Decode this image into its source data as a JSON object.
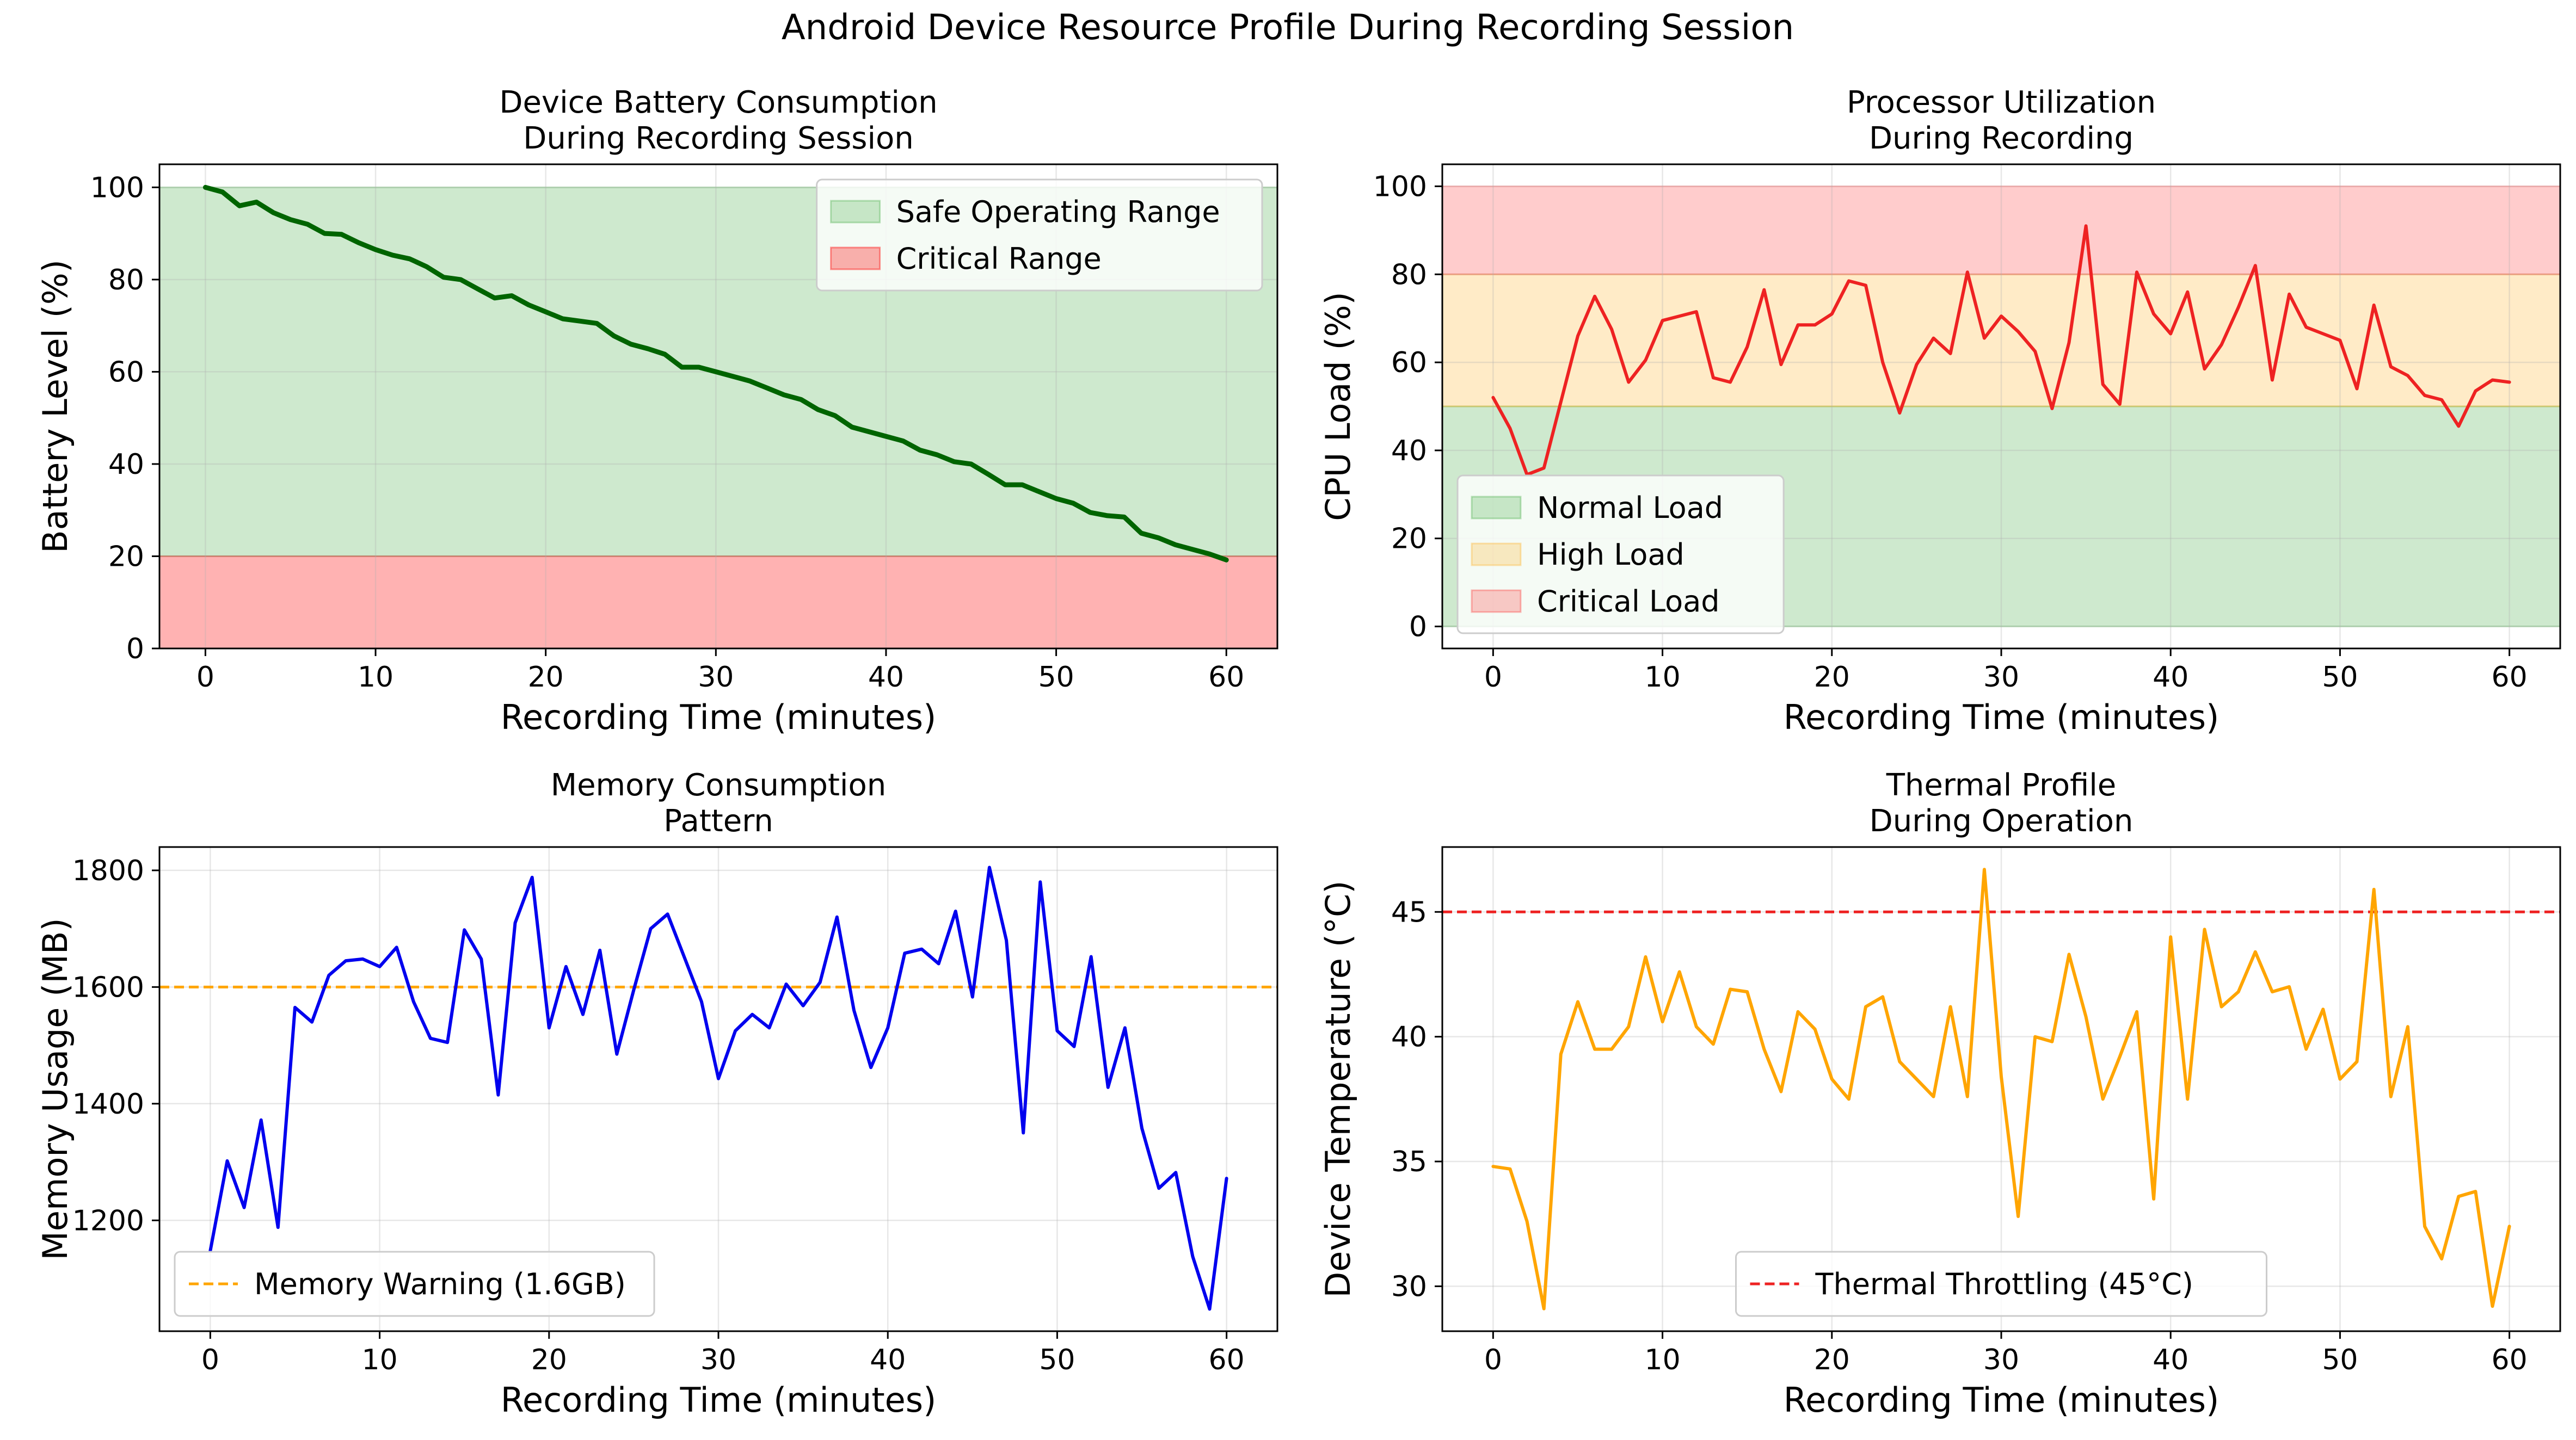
{
  "figure": {
    "suptitle": "Android Device Resource Profile During Recording Session"
  },
  "chart_data": [
    {
      "type": "line",
      "title": "Device Battery Consumption\nDuring Recording Session",
      "xlabel": "Recording Time (minutes)",
      "ylabel": "Battery Level (%)",
      "xlim": [
        -2.7,
        63
      ],
      "ylim": [
        0,
        105
      ],
      "xticks": [
        0,
        10,
        20,
        30,
        40,
        50,
        60
      ],
      "yticks": [
        0,
        20,
        40,
        60,
        80,
        100
      ],
      "grid": true,
      "legend_position": "top-right",
      "bands": [
        {
          "label": "Safe Operating Range",
          "y0": 20,
          "y1": 100,
          "color": "#2ca02c",
          "opacity": 0.23
        },
        {
          "label": "Critical Range",
          "y0": 0,
          "y1": 20,
          "color": "#ff0000",
          "opacity": 0.3
        }
      ],
      "series": [
        {
          "color": "#006400",
          "width": 3,
          "x": [
            0,
            1,
            2,
            3,
            4,
            5,
            6,
            7,
            8,
            9,
            10,
            11,
            12,
            13,
            14,
            15,
            16,
            17,
            18,
            19,
            20,
            21,
            22,
            23,
            24,
            25,
            26,
            27,
            28,
            29,
            30,
            31,
            32,
            33,
            34,
            35,
            36,
            37,
            38,
            39,
            40,
            41,
            42,
            43,
            44,
            45,
            46,
            47,
            48,
            49,
            50,
            51,
            52,
            53,
            54,
            55,
            56,
            57,
            58,
            59,
            60
          ],
          "values": [
            100,
            99,
            96,
            96.8,
            94.5,
            93,
            92,
            90,
            89.8,
            88,
            86.5,
            85.3,
            84.5,
            82.8,
            80.5,
            80,
            78,
            76,
            76.5,
            74.5,
            73,
            71.5,
            71,
            70.5,
            67.8,
            66,
            65,
            63.8,
            61,
            61,
            60,
            59,
            58,
            56.5,
            55,
            54,
            51.8,
            50.5,
            48,
            47,
            46,
            45,
            43,
            42,
            40.5,
            40,
            37.8,
            35.5,
            35.5,
            34,
            32.5,
            31.5,
            29.5,
            28.8,
            28.5,
            25,
            24,
            22.5,
            21.5,
            20.5,
            19.2
          ]
        }
      ]
    },
    {
      "type": "line",
      "title": "Processor Utilization\nDuring Recording",
      "xlabel": "Recording Time (minutes)",
      "ylabel": "CPU Load (%)",
      "xlim": [
        -3,
        63
      ],
      "ylim": [
        -5,
        105
      ],
      "xticks": [
        0,
        10,
        20,
        30,
        40,
        50,
        60
      ],
      "yticks": [
        0,
        20,
        40,
        60,
        80,
        100
      ],
      "grid": true,
      "legend_position": "bottom-left",
      "bands": [
        {
          "label": "Normal Load",
          "y0": 0,
          "y1": 50,
          "color": "#2ca02c",
          "opacity": 0.23
        },
        {
          "label": "High Load",
          "y0": 50,
          "y1": 80,
          "color": "#ffa500",
          "opacity": 0.22
        },
        {
          "label": "Critical Load",
          "y0": 80,
          "y1": 100,
          "color": "#ff0000",
          "opacity": 0.2
        }
      ],
      "series": [
        {
          "color": "#ee2222",
          "width": 2,
          "x": [
            0,
            1,
            2,
            3,
            4,
            5,
            6,
            7,
            8,
            9,
            10,
            11,
            12,
            13,
            14,
            15,
            16,
            17,
            18,
            19,
            20,
            21,
            22,
            23,
            24,
            25,
            26,
            27,
            28,
            29,
            30,
            31,
            32,
            33,
            34,
            35,
            36,
            37,
            38,
            39,
            40,
            41,
            42,
            43,
            44,
            45,
            46,
            47,
            48,
            49,
            50,
            51,
            52,
            53,
            54,
            55,
            56,
            57,
            58,
            59,
            60
          ],
          "values": [
            52,
            45,
            34.5,
            36,
            51,
            66,
            75,
            67.5,
            55.5,
            60.5,
            69.5,
            70.5,
            71.5,
            56.5,
            55.5,
            63.5,
            76.5,
            59.5,
            68.5,
            68.5,
            71,
            78.5,
            77.5,
            60,
            48.5,
            59.5,
            65.5,
            62,
            80.5,
            65.5,
            70.5,
            67,
            62.5,
            49.5,
            64.5,
            91,
            55,
            50.5,
            80.5,
            71,
            66.5,
            76,
            58.5,
            64,
            72.5,
            82,
            56,
            75.5,
            68,
            66.5,
            65,
            54,
            73,
            59,
            57,
            52.5,
            51.5,
            45.5,
            53.5,
            56,
            55.5
          ]
        }
      ]
    },
    {
      "type": "line",
      "title": "Memory Consumption\nPattern",
      "xlabel": "Recording Time (minutes)",
      "ylabel": "Memory Usage (MB)",
      "xlim": [
        -3,
        63
      ],
      "ylim": [
        1010,
        1840
      ],
      "xticks": [
        0,
        10,
        20,
        30,
        40,
        50,
        60
      ],
      "yticks": [
        1200,
        1400,
        1600,
        1800
      ],
      "grid": true,
      "legend_position": "bottom-left",
      "hlines": [
        {
          "label": "Memory Warning (1.6GB)",
          "y": 1600,
          "color": "#ffa500",
          "dash": "18 9"
        }
      ],
      "series": [
        {
          "color": "#0000ee",
          "width": 2,
          "x": [
            0,
            1,
            2,
            3,
            4,
            5,
            6,
            7,
            8,
            9,
            10,
            11,
            12,
            13,
            14,
            15,
            16,
            17,
            18,
            19,
            20,
            21,
            22,
            23,
            24,
            25,
            26,
            27,
            28,
            29,
            30,
            31,
            32,
            33,
            34,
            35,
            36,
            37,
            38,
            39,
            40,
            41,
            42,
            43,
            44,
            45,
            46,
            47,
            48,
            49,
            50,
            51,
            52,
            53,
            54,
            55,
            56,
            57,
            58,
            59,
            60
          ],
          "values": [
            1148,
            1302,
            1222,
            1372,
            1188,
            1565,
            1540,
            1620,
            1645,
            1648,
            1635,
            1668,
            1575,
            1512,
            1505,
            1698,
            1648,
            1415,
            1710,
            1788,
            1530,
            1635,
            1553,
            1663,
            1485,
            1595,
            1700,
            1725,
            1650,
            1575,
            1443,
            1525,
            1553,
            1530,
            1605,
            1568,
            1608,
            1720,
            1560,
            1462,
            1530,
            1658,
            1665,
            1640,
            1730,
            1583,
            1805,
            1680,
            1350,
            1780,
            1525,
            1498,
            1652,
            1428,
            1530,
            1358,
            1255,
            1282,
            1138,
            1048,
            1272
          ]
        }
      ]
    },
    {
      "type": "line",
      "title": "Thermal Profile\nDuring Operation",
      "xlabel": "Recording Time (minutes)",
      "ylabel": "Device Temperature (°C)",
      "xlim": [
        -3,
        63
      ],
      "ylim": [
        28.2,
        47.6
      ],
      "xticks": [
        0,
        10,
        20,
        30,
        40,
        50,
        60
      ],
      "yticks": [
        30,
        35,
        40,
        45
      ],
      "grid": true,
      "legend_position": "bottom-center",
      "hlines": [
        {
          "label": "Thermal Throttling (45°C)",
          "y": 45,
          "color": "#ee2222",
          "dash": "18 9"
        }
      ],
      "series": [
        {
          "color": "#ffa500",
          "width": 2,
          "x": [
            0,
            1,
            2,
            3,
            4,
            5,
            6,
            7,
            8,
            9,
            10,
            11,
            12,
            13,
            14,
            15,
            16,
            17,
            18,
            19,
            20,
            21,
            22,
            23,
            24,
            25,
            26,
            27,
            28,
            29,
            30,
            31,
            32,
            33,
            34,
            35,
            36,
            37,
            38,
            39,
            40,
            41,
            42,
            43,
            44,
            45,
            46,
            47,
            48,
            49,
            50,
            51,
            52,
            53,
            54,
            55,
            56,
            57,
            58,
            59,
            60
          ],
          "values": [
            34.8,
            34.7,
            32.6,
            29.1,
            39.3,
            41.4,
            39.5,
            39.5,
            40.4,
            43.2,
            40.6,
            42.6,
            40.4,
            39.7,
            41.9,
            41.8,
            39.5,
            37.8,
            41.0,
            40.3,
            38.3,
            37.5,
            41.2,
            41.6,
            39.0,
            38.3,
            37.6,
            41.2,
            37.6,
            46.7,
            38.4,
            32.8,
            40.0,
            39.8,
            43.3,
            40.8,
            37.5,
            39.2,
            41.0,
            33.5,
            44.0,
            37.5,
            44.3,
            41.2,
            41.8,
            43.4,
            41.8,
            42.0,
            39.5,
            41.1,
            38.3,
            39.0,
            45.9,
            37.6,
            40.4,
            32.4,
            31.1,
            33.6,
            33.8,
            29.2,
            32.4
          ]
        }
      ]
    }
  ]
}
